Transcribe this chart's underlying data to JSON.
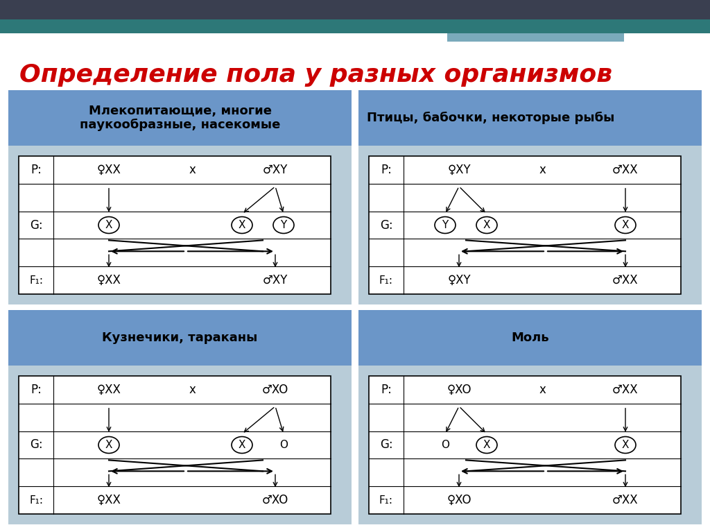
{
  "title": "Определение пола у разных организмов",
  "title_color": "#cc0000",
  "title_fontsize": 26,
  "bg_color": "#ffffff",
  "header_bg": "#6b96c8",
  "cell_bg": "#b8ccd8",
  "slide_top_bar": "#3a3f50",
  "slide_teal": "#2d7878",
  "slide_light_blue": "#7aaabb",
  "panels": [
    {
      "header": "Млекопитающие, многие\nпаукообразные, насекомые",
      "header_align": "center",
      "female_label": "♀XX",
      "male_label": "♂XY",
      "gamete_female": [
        "X"
      ],
      "gamete_male": [
        "X",
        "Y"
      ],
      "f1_female": "♀XX",
      "f1_male": "♂XY",
      "female_two": false,
      "male_two": true
    },
    {
      "header": "Птицы, бабочки, некоторые рыбы",
      "header_align": "left",
      "female_label": "♀XY",
      "male_label": "♂XX",
      "gamete_female": [
        "Y",
        "X"
      ],
      "gamete_male": [
        "X"
      ],
      "f1_female": "♀XY",
      "f1_male": "♂XX",
      "female_two": true,
      "male_two": false
    },
    {
      "header": "Кузнечики, тараканы",
      "header_align": "center",
      "female_label": "♀XX",
      "male_label": "♂XO",
      "gamete_female": [
        "X"
      ],
      "gamete_male": [
        "X",
        "O"
      ],
      "f1_female": "♀XX",
      "f1_male": "♂XO",
      "female_two": false,
      "male_two": true
    },
    {
      "header": "Моль",
      "header_align": "center",
      "female_label": "♀XO",
      "male_label": "♂XX",
      "gamete_female": [
        "O",
        "X"
      ],
      "gamete_male": [
        "X"
      ],
      "f1_female": "♀XO",
      "f1_male": "♂XX",
      "female_two": true,
      "male_two": false
    }
  ]
}
